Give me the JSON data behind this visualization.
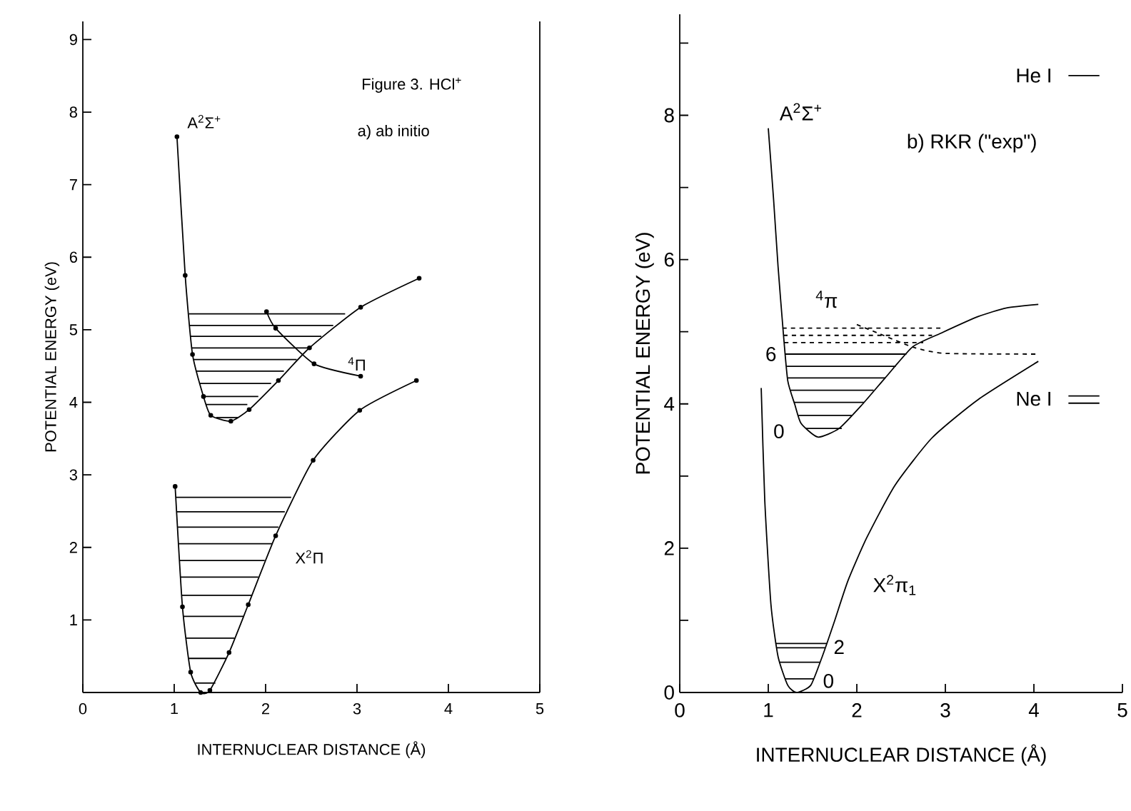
{
  "chart_data": [
    {
      "type": "line",
      "title": "Figure 3.  HCl$^{+}$",
      "subtitle": "a) ab initio",
      "xlabel": "INTERNUCLEAR DISTANCE (Å)",
      "ylabel": "POTENTIAL ENERGY (eV)",
      "xlim": [
        0,
        5
      ],
      "ylim": [
        0,
        9.25
      ],
      "xticks": [
        0,
        1,
        2,
        3,
        4,
        5
      ],
      "yticks": [
        1,
        2,
        3,
        4,
        5,
        6,
        7,
        8,
        9
      ],
      "marker": "circle",
      "series": [
        {
          "color": "#000000",
          "x": [
            1.03,
            1.12,
            1.2,
            1.32,
            1.4,
            1.62,
            1.82,
            2.14,
            2.48,
            3.04,
            3.68
          ],
          "values": [
            7.66,
            5.75,
            4.66,
            4.08,
            3.82,
            3.74,
            3.9,
            4.3,
            4.75,
            5.31,
            5.71
          ]
        },
        {
          "color": "#000000",
          "x": [
            2.01,
            2.11,
            2.53,
            3.04
          ],
          "values": [
            5.25,
            5.02,
            4.53,
            4.36
          ]
        },
        {
          "color": "#000000",
          "x": [
            1.01,
            1.09,
            1.18,
            1.29,
            1.39,
            1.6,
            1.81,
            2.11,
            2.52,
            3.03,
            3.65
          ],
          "values": [
            2.84,
            1.18,
            0.28,
            0,
            0.03,
            0.55,
            1.21,
            2.16,
            3.2,
            3.89,
            4.3
          ]
        },
        {
          "color": "#000000",
          "marker": "none",
          "x": [
            1.16,
            2.87
          ],
          "values": [
            5.22,
            5.22
          ]
        },
        {
          "color": "#000000",
          "marker": "none",
          "x": [
            1.17,
            2.74
          ],
          "values": [
            5.06,
            5.06
          ]
        },
        {
          "color": "#000000",
          "marker": "none",
          "x": [
            1.18,
            2.61
          ],
          "values": [
            4.91,
            4.91
          ]
        },
        {
          "color": "#000000",
          "marker": "none",
          "x": [
            1.19,
            2.48
          ],
          "values": [
            4.75,
            4.75
          ]
        },
        {
          "color": "#000000",
          "marker": "none",
          "x": [
            1.21,
            2.34
          ],
          "values": [
            4.59,
            4.59
          ]
        },
        {
          "color": "#000000",
          "marker": "none",
          "x": [
            1.24,
            2.2
          ],
          "values": [
            4.43,
            4.43
          ]
        },
        {
          "color": "#000000",
          "marker": "none",
          "x": [
            1.28,
            2.06
          ],
          "values": [
            4.26,
            4.26
          ]
        },
        {
          "color": "#000000",
          "marker": "none",
          "x": [
            1.32,
            1.92
          ],
          "values": [
            4.08,
            4.08
          ]
        },
        {
          "color": "#000000",
          "marker": "none",
          "x": [
            1.35,
            1.8
          ],
          "values": [
            3.97,
            3.97
          ]
        },
        {
          "color": "#000000",
          "marker": "none",
          "x": [
            1.46,
            1.7
          ],
          "values": [
            3.79,
            3.79
          ]
        },
        {
          "color": "#000000",
          "marker": "none",
          "x": [
            1.02,
            2.28
          ],
          "values": [
            2.69,
            2.69
          ]
        },
        {
          "color": "#000000",
          "marker": "none",
          "x": [
            1.03,
            2.21
          ],
          "values": [
            2.49,
            2.49
          ]
        },
        {
          "color": "#000000",
          "marker": "none",
          "x": [
            1.04,
            2.14
          ],
          "values": [
            2.28,
            2.28
          ]
        },
        {
          "color": "#000000",
          "marker": "none",
          "x": [
            1.05,
            2.07
          ],
          "values": [
            2.05,
            2.05
          ]
        },
        {
          "color": "#000000",
          "marker": "none",
          "x": [
            1.06,
            1.99
          ],
          "values": [
            1.82,
            1.82
          ]
        },
        {
          "color": "#000000",
          "marker": "none",
          "x": [
            1.07,
            1.92
          ],
          "values": [
            1.59,
            1.59
          ]
        },
        {
          "color": "#000000",
          "marker": "none",
          "x": [
            1.08,
            1.85
          ],
          "values": [
            1.34,
            1.34
          ]
        },
        {
          "color": "#000000",
          "marker": "none",
          "x": [
            1.1,
            1.76
          ],
          "values": [
            1.05,
            1.05
          ]
        },
        {
          "color": "#000000",
          "marker": "none",
          "x": [
            1.13,
            1.66
          ],
          "values": [
            0.75,
            0.75
          ]
        },
        {
          "color": "#000000",
          "marker": "none",
          "x": [
            1.16,
            1.57
          ],
          "values": [
            0.47,
            0.47
          ]
        },
        {
          "color": "#000000",
          "marker": "none",
          "x": [
            1.23,
            1.45
          ],
          "values": [
            0.13,
            0.13
          ]
        }
      ],
      "annotations": [
        "A$^{2}$Σ$^{+}$",
        "$^{4}$Π",
        "X$^{2}$Π"
      ]
    },
    {
      "type": "line",
      "subtitle": "b) RKR (\"exp\")",
      "xlabel": "INTERNUCLEAR DISTANCE (Å)",
      "ylabel": "POTENTIAL ENERGY (eV)",
      "xlim": [
        0,
        5
      ],
      "ylim": [
        0,
        9.4
      ],
      "xticks": [
        0,
        1,
        2,
        3,
        4,
        5
      ],
      "yticks": [
        0,
        {
          "value": 1,
          "label": null
        },
        2,
        {
          "value": 3,
          "label": null
        },
        4,
        {
          "value": 5,
          "label": null
        },
        6,
        {
          "value": 7,
          "label": null
        },
        8,
        {
          "value": 9,
          "label": null
        }
      ],
      "series": [
        {
          "color": "#000000",
          "x": [
            1.0,
            1.06,
            1.11,
            1.17,
            1.22,
            1.3,
            1.37,
            1.56,
            1.8,
            2.06,
            2.32,
            2.63,
            2.95,
            3.37,
            3.69,
            4.05
          ],
          "values": [
            7.82,
            6.83,
            5.91,
            4.98,
            4.32,
            3.99,
            3.73,
            3.54,
            3.66,
            3.99,
            4.36,
            4.79,
            4.98,
            5.21,
            5.33,
            5.38
          ]
        },
        {
          "color": "#000000",
          "x": [
            0.92,
            0.96,
            1.03,
            1.11,
            1.22,
            1.32,
            1.48,
            1.61,
            1.74,
            1.9,
            2.11,
            2.43,
            2.85,
            3.37,
            4.05
          ],
          "values": [
            4.22,
            2.67,
            1.22,
            0.5,
            0.1,
            0,
            0.1,
            0.5,
            0.96,
            1.55,
            2.14,
            2.87,
            3.53,
            4.06,
            4.59
          ]
        },
        {
          "color": "#000000",
          "line_style": "dashed",
          "x": [
            2.0,
            2.3,
            2.65,
            3.0,
            4.05
          ],
          "values": [
            5.1,
            4.95,
            4.78,
            4.7,
            4.69
          ]
        },
        {
          "color": "#000000",
          "x": [
            1.42,
            1.83
          ],
          "values": [
            3.66,
            3.66
          ]
        },
        {
          "color": "#000000",
          "x": [
            1.34,
            1.95
          ],
          "values": [
            3.84,
            3.84
          ]
        },
        {
          "color": "#000000",
          "x": [
            1.29,
            2.08
          ],
          "values": [
            4.02,
            4.02
          ]
        },
        {
          "color": "#000000",
          "x": [
            1.25,
            2.19
          ],
          "values": [
            4.19,
            4.19
          ]
        },
        {
          "color": "#000000",
          "x": [
            1.22,
            2.32
          ],
          "values": [
            4.36,
            4.36
          ]
        },
        {
          "color": "#000000",
          "x": [
            1.21,
            2.44
          ],
          "values": [
            4.52,
            4.52
          ]
        },
        {
          "color": "#000000",
          "x": [
            1.19,
            2.56
          ],
          "values": [
            4.69,
            4.69
          ]
        },
        {
          "color": "#000000",
          "line_style": "dashed",
          "x": [
            1.18,
            2.75
          ],
          "values": [
            4.85,
            4.85
          ]
        },
        {
          "color": "#000000",
          "line_style": "dashed",
          "x": [
            1.17,
            2.85
          ],
          "values": [
            4.95,
            4.95
          ]
        },
        {
          "color": "#000000",
          "line_style": "dashed",
          "x": [
            1.16,
            2.95
          ],
          "values": [
            5.05,
            5.05
          ]
        },
        {
          "color": "#000000",
          "x": [
            1.19,
            1.51
          ],
          "values": [
            0.19,
            0.19
          ]
        },
        {
          "color": "#000000",
          "x": [
            1.13,
            1.58
          ],
          "values": [
            0.42,
            0.42
          ]
        },
        {
          "color": "#000000",
          "x": [
            1.09,
            1.64
          ],
          "values": [
            0.62,
            0.62
          ]
        },
        {
          "color": "#000000",
          "x": [
            1.08,
            1.66
          ],
          "values": [
            0.68,
            0.68
          ]
        },
        {
          "color": "#000000",
          "x": [
            4.39,
            4.74
          ],
          "values": [
            8.55,
            8.55
          ]
        },
        {
          "color": "#000000",
          "x": [
            4.39,
            4.74
          ],
          "values": [
            4.11,
            4.11
          ]
        },
        {
          "color": "#000000",
          "x": [
            4.39,
            4.74
          ],
          "values": [
            4.01,
            4.01
          ]
        }
      ],
      "annotations": [
        "A$^{2}$Σ$^{+}$",
        "$^{4}$π",
        "X$^{2}$π$_{1}$",
        "6",
        "0",
        "2",
        "0",
        "He I",
        "Ne I"
      ]
    }
  ]
}
